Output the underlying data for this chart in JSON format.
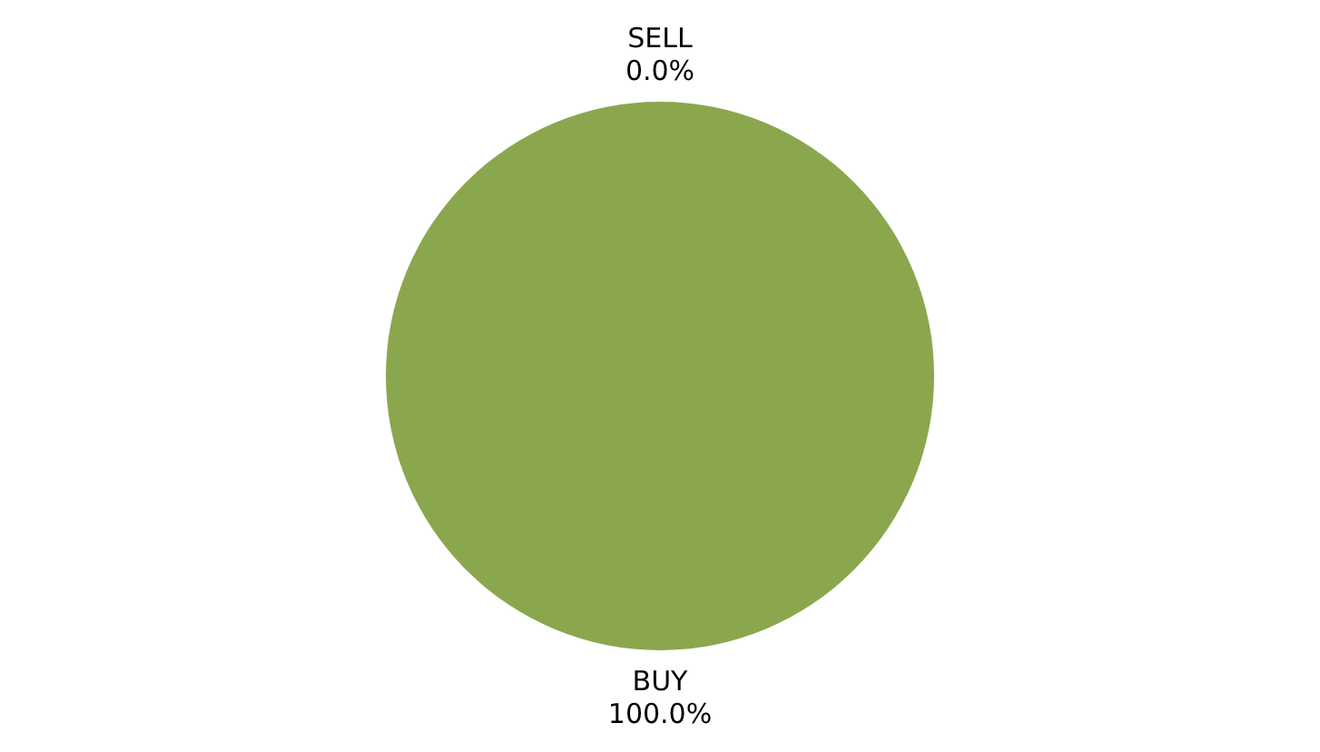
{
  "chart_data": {
    "type": "pie",
    "categories": [
      "SELL",
      "BUY"
    ],
    "values": [
      0,
      100
    ],
    "colors": [
      "#4f81bd",
      "#8ba74e"
    ],
    "value_labels": [
      "0.0%",
      "100.0%"
    ],
    "legend": false
  }
}
